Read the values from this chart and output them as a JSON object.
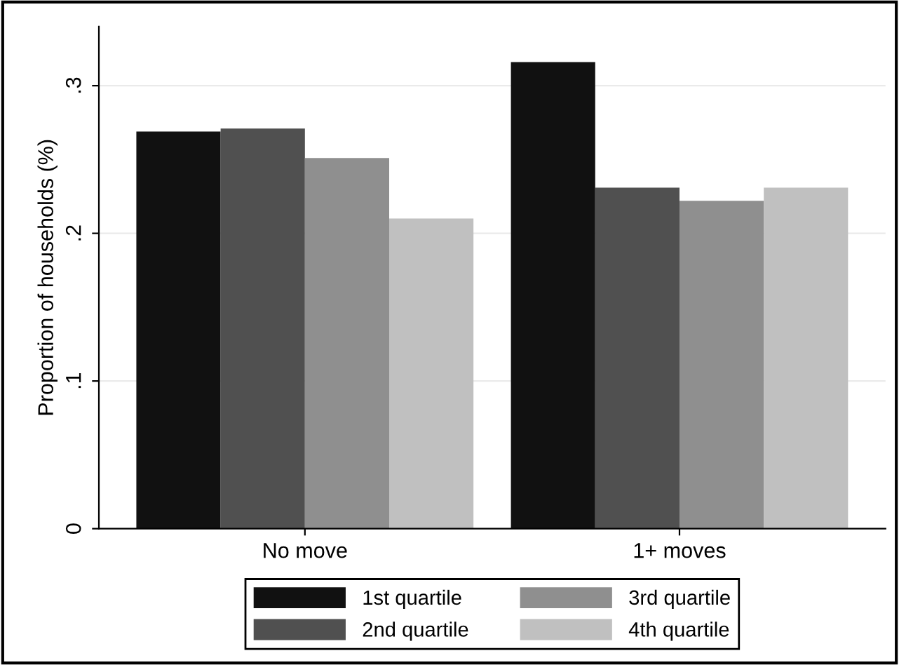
{
  "chart_data": {
    "type": "bar",
    "ylabel": "Proportion of households (%)",
    "categories": [
      "No move",
      "1+ moves"
    ],
    "series": [
      {
        "name": "1st quartile",
        "color": "#111111",
        "values": [
          0.269,
          0.316
        ]
      },
      {
        "name": "2nd quartile",
        "color": "#505050",
        "values": [
          0.271,
          0.231
        ]
      },
      {
        "name": "3rd quartile",
        "color": "#8f8f8f",
        "values": [
          0.251,
          0.222
        ]
      },
      {
        "name": "4th quartile",
        "color": "#c0c0c0",
        "values": [
          0.21,
          0.231
        ]
      }
    ],
    "ylim": [
      0,
      0.34
    ],
    "yticks": [
      0,
      {
        "value": 0.1,
        "label": ".1"
      },
      {
        "value": 0.2,
        "label": ".2"
      },
      {
        "value": 0.3,
        "label": ".3"
      }
    ],
    "grid": "y",
    "legend": "bottom"
  }
}
